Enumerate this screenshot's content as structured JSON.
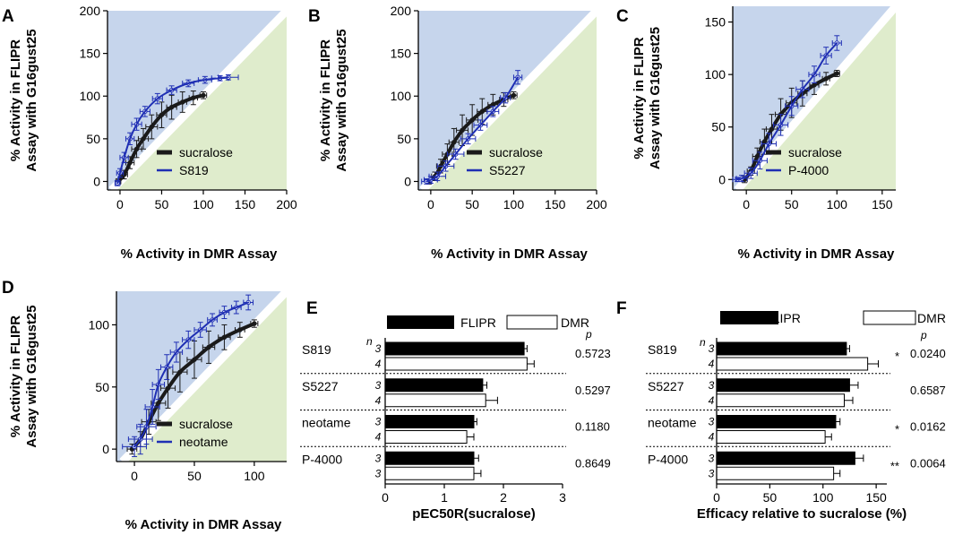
{
  "colors": {
    "region_above": "#c6d5ec",
    "region_below": "#dfeccc",
    "sucralose": "#1a1a1a",
    "compound": "#1f2fb4",
    "bar_fill": "#000000",
    "bar_open": "#ffffff"
  },
  "chart_data": [
    {
      "id": "A",
      "type": "scatter",
      "letter": "A",
      "xlabel": "% Activity in DMR Assay",
      "ylabel_line1": "% Activity in FLIPR",
      "ylabel_line2": "Assay with G16gust25",
      "xlim": [
        -15,
        200
      ],
      "ylim": [
        -10,
        200
      ],
      "xticks": [
        "0",
        "50",
        "100",
        "150",
        "200"
      ],
      "yticks": [
        "0",
        "50",
        "100",
        "150",
        "200"
      ],
      "series": [
        {
          "name": "sucralose",
          "color": "#1a1a1a",
          "x": [
            -2,
            5,
            12,
            20,
            28,
            38,
            50,
            62,
            75,
            88,
            100
          ],
          "y": [
            0,
            8,
            22,
            38,
            50,
            64,
            78,
            87,
            93,
            98,
            101
          ],
          "xerr": [
            3,
            4,
            5,
            6,
            6,
            7,
            6,
            6,
            5,
            5,
            4
          ],
          "yerr": [
            3,
            5,
            7,
            10,
            12,
            14,
            15,
            14,
            12,
            8,
            4
          ]
        },
        {
          "name": "S819",
          "color": "#1f2fb4",
          "x": [
            -3,
            0,
            5,
            12,
            20,
            30,
            45,
            62,
            82,
            102,
            120,
            130
          ],
          "y": [
            -2,
            10,
            28,
            50,
            67,
            82,
            97,
            107,
            115,
            119,
            121,
            122
          ],
          "xerr": [
            3,
            4,
            5,
            5,
            6,
            6,
            6,
            6,
            7,
            8,
            10,
            12
          ],
          "yerr": [
            3,
            5,
            6,
            7,
            7,
            6,
            6,
            5,
            4,
            4,
            3,
            3
          ]
        }
      ]
    },
    {
      "id": "B",
      "type": "scatter",
      "letter": "B",
      "xlabel": "% Activity in DMR Assay",
      "ylabel_line1": "% Activity in FLIPR",
      "ylabel_line2": "Assay with G16gust25",
      "xlim": [
        -15,
        200
      ],
      "ylim": [
        -10,
        200
      ],
      "xticks": [
        "0",
        "50",
        "100",
        "150",
        "200"
      ],
      "yticks": [
        "0",
        "50",
        "100",
        "150",
        "200"
      ],
      "series": [
        {
          "name": "sucralose",
          "color": "#1a1a1a",
          "x": [
            -2,
            5,
            12,
            20,
            28,
            38,
            50,
            62,
            75,
            88,
            100
          ],
          "y": [
            0,
            6,
            18,
            32,
            46,
            60,
            72,
            82,
            90,
            96,
            101
          ],
          "xerr": [
            3,
            4,
            5,
            6,
            6,
            7,
            7,
            6,
            6,
            5,
            4
          ],
          "yerr": [
            3,
            5,
            8,
            12,
            16,
            18,
            18,
            15,
            12,
            8,
            4
          ]
        },
        {
          "name": "S5227",
          "color": "#1f2fb4",
          "x": [
            -5,
            0,
            8,
            18,
            30,
            45,
            60,
            75,
            90,
            105
          ],
          "y": [
            0,
            2,
            6,
            18,
            32,
            50,
            66,
            82,
            98,
            122
          ],
          "xerr": [
            6,
            8,
            10,
            10,
            10,
            9,
            8,
            7,
            6,
            5
          ],
          "yerr": [
            3,
            4,
            5,
            6,
            6,
            6,
            6,
            6,
            6,
            8
          ]
        }
      ]
    },
    {
      "id": "C",
      "type": "scatter",
      "letter": "C",
      "xlabel": "% Activity in DMR Assay",
      "ylabel_line1": "% Activity in FLIPR",
      "ylabel_line2": "Assay with G16gust25",
      "xlim": [
        -15,
        165
      ],
      "ylim": [
        -10,
        165
      ],
      "xticks": [
        "0",
        "50",
        "100",
        "150"
      ],
      "yticks": [
        "0",
        "50",
        "100",
        "150"
      ],
      "series": [
        {
          "name": "sucralose",
          "color": "#1a1a1a",
          "x": [
            -2,
            5,
            12,
            20,
            28,
            38,
            50,
            62,
            75,
            88,
            100
          ],
          "y": [
            0,
            8,
            22,
            36,
            48,
            62,
            73,
            82,
            90,
            96,
            101
          ],
          "xerr": [
            3,
            4,
            5,
            5,
            6,
            6,
            6,
            5,
            5,
            4,
            3
          ],
          "yerr": [
            3,
            4,
            8,
            12,
            14,
            15,
            14,
            12,
            9,
            6,
            3
          ]
        },
        {
          "name": "P-4000",
          "color": "#1f2fb4",
          "x": [
            -10,
            -5,
            5,
            15,
            25,
            38,
            50,
            62,
            75,
            88,
            100
          ],
          "y": [
            0,
            1,
            6,
            18,
            34,
            52,
            70,
            86,
            100,
            118,
            130
          ],
          "xerr": [
            5,
            6,
            7,
            8,
            8,
            8,
            7,
            7,
            6,
            6,
            5
          ],
          "yerr": [
            2,
            3,
            5,
            8,
            10,
            10,
            9,
            8,
            8,
            8,
            7
          ]
        }
      ]
    },
    {
      "id": "D",
      "type": "scatter",
      "letter": "D",
      "xlabel": "% Activity in DMR Assay",
      "ylabel_line1": "% Activity in FLIPR",
      "ylabel_line2": "Assay with G16gust25",
      "xlim": [
        -15,
        127
      ],
      "ylim": [
        -10,
        127
      ],
      "xticks": [
        "0",
        "50",
        "100"
      ],
      "yticks": [
        "0",
        "50",
        "100"
      ],
      "series": [
        {
          "name": "sucralose",
          "color": "#1a1a1a",
          "x": [
            -2,
            5,
            12,
            20,
            28,
            38,
            50,
            62,
            75,
            88,
            100
          ],
          "y": [
            0,
            8,
            22,
            37,
            49,
            62,
            72,
            82,
            90,
            96,
            101
          ],
          "xerr": [
            4,
            5,
            6,
            6,
            6,
            6,
            6,
            5,
            5,
            4,
            3
          ],
          "yerr": [
            4,
            6,
            10,
            14,
            16,
            16,
            15,
            13,
            10,
            6,
            3
          ]
        },
        {
          "name": "neotame",
          "color": "#1f2fb4",
          "x": [
            0,
            5,
            10,
            15,
            20,
            27,
            35,
            45,
            55,
            65,
            75,
            85,
            95
          ],
          "y": [
            2,
            8,
            18,
            34,
            52,
            66,
            78,
            88,
            96,
            104,
            110,
            114,
            118
          ],
          "xerr": [
            10,
            10,
            8,
            6,
            5,
            5,
            5,
            5,
            5,
            4,
            4,
            4,
            4
          ],
          "yerr": [
            8,
            12,
            14,
            14,
            12,
            10,
            8,
            7,
            6,
            5,
            5,
            5,
            6
          ]
        }
      ]
    },
    {
      "id": "E",
      "type": "bar",
      "letter": "E",
      "orientation": "horizontal",
      "xlabel": "pEC50R(sucralose)",
      "xlim": [
        0,
        3
      ],
      "xticks": [
        "0",
        "1",
        "2",
        "3"
      ],
      "legend": [
        "FLIPR",
        "DMR"
      ],
      "n_header": "n",
      "p_header": "p",
      "categories": [
        "S819",
        "S5227",
        "neotame",
        "P-4000"
      ],
      "series": [
        {
          "name": "FLIPR",
          "values": [
            2.35,
            1.65,
            1.5,
            1.5
          ],
          "errors": [
            0.05,
            0.07,
            0.05,
            0.08
          ],
          "n": [
            "3",
            "3",
            "3",
            "3"
          ]
        },
        {
          "name": "DMR",
          "values": [
            2.4,
            1.7,
            1.38,
            1.5
          ],
          "errors": [
            0.12,
            0.2,
            0.12,
            0.12
          ],
          "n": [
            "4",
            "4",
            "4",
            "3"
          ]
        }
      ],
      "p_values": [
        "0.5723",
        "0.5297",
        "0.1180",
        "0.8649"
      ],
      "significance": [
        "",
        "",
        "",
        ""
      ]
    },
    {
      "id": "F",
      "type": "bar",
      "letter": "F",
      "orientation": "horizontal",
      "xlabel": "Efficacy relative to sucralose (%)",
      "xlim": [
        0,
        160
      ],
      "xticks": [
        "0",
        "50",
        "100",
        "150"
      ],
      "legend": [
        "FLIPR",
        "DMR"
      ],
      "n_header": "n",
      "p_header": "p",
      "categories": [
        "S819",
        "S5227",
        "neotame",
        "P-4000"
      ],
      "series": [
        {
          "name": "FLIPR",
          "values": [
            122,
            125,
            112,
            130
          ],
          "errors": [
            3,
            8,
            4,
            8
          ],
          "n": [
            "3",
            "3",
            "3",
            "3"
          ]
        },
        {
          "name": "DMR",
          "values": [
            142,
            120,
            102,
            110
          ],
          "errors": [
            10,
            8,
            6,
            6
          ],
          "n": [
            "4",
            "4",
            "4",
            "3"
          ]
        }
      ],
      "p_values": [
        "0.0240",
        "0.6587",
        "0.0162",
        "0.0064"
      ],
      "significance": [
        "*",
        "",
        "*",
        "**"
      ]
    }
  ]
}
